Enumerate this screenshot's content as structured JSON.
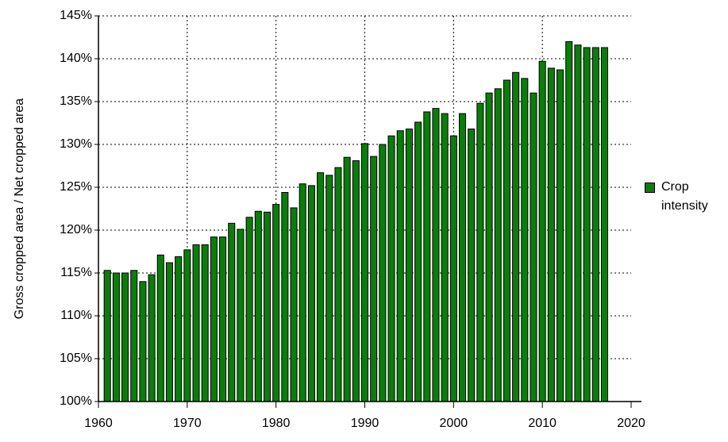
{
  "chart_data": {
    "type": "bar",
    "y_label": "Gross cropped area / Net cropped area",
    "x": [
      1961,
      1962,
      1963,
      1964,
      1965,
      1966,
      1967,
      1968,
      1969,
      1970,
      1971,
      1972,
      1973,
      1974,
      1975,
      1976,
      1977,
      1978,
      1979,
      1980,
      1981,
      1982,
      1983,
      1984,
      1985,
      1986,
      1987,
      1988,
      1989,
      1990,
      1991,
      1992,
      1993,
      1994,
      1995,
      1996,
      1997,
      1998,
      1999,
      2000,
      2001,
      2002,
      2003,
      2004,
      2005,
      2006,
      2007,
      2008,
      2009,
      2010,
      2011,
      2012,
      2013,
      2014,
      2015,
      2016,
      2017
    ],
    "series": [
      {
        "name": "Crop intensity",
        "color": "#0b7d0b",
        "values": [
          115.3,
          115.0,
          115.0,
          115.3,
          114.0,
          114.8,
          117.1,
          116.2,
          116.9,
          117.7,
          118.3,
          118.3,
          119.2,
          119.2,
          120.8,
          120.1,
          121.5,
          122.2,
          122.1,
          123.0,
          124.4,
          122.6,
          125.4,
          125.2,
          126.7,
          126.4,
          127.3,
          128.5,
          128.1,
          130.1,
          128.6,
          130.0,
          131.0,
          131.6,
          131.8,
          132.6,
          133.8,
          134.2,
          133.6,
          131.0,
          133.6,
          131.8,
          134.8,
          136.0,
          136.5,
          137.5,
          138.4,
          137.7,
          136.0,
          139.7,
          138.9,
          138.7,
          142.0,
          141.6,
          141.3,
          141.3,
          141.3
        ]
      }
    ],
    "xlim": [
      1960,
      2020
    ],
    "xticks": [
      1960,
      1970,
      1980,
      1990,
      2000,
      2010,
      2020
    ],
    "ylim": [
      100,
      145
    ],
    "yticks": [
      {
        "value": 100,
        "label": "100%"
      },
      {
        "value": 105,
        "label": "105%"
      },
      {
        "value": 110,
        "label": "110%"
      },
      {
        "value": 115,
        "label": "115%"
      },
      {
        "value": 120,
        "label": "120%"
      },
      {
        "value": 125,
        "label": "125%"
      },
      {
        "value": 130,
        "label": "130%"
      },
      {
        "value": 135,
        "label": "135%"
      },
      {
        "value": 140,
        "label": "140%"
      },
      {
        "value": 145,
        "label": "145%"
      }
    ],
    "grid": true,
    "legend": "right"
  }
}
